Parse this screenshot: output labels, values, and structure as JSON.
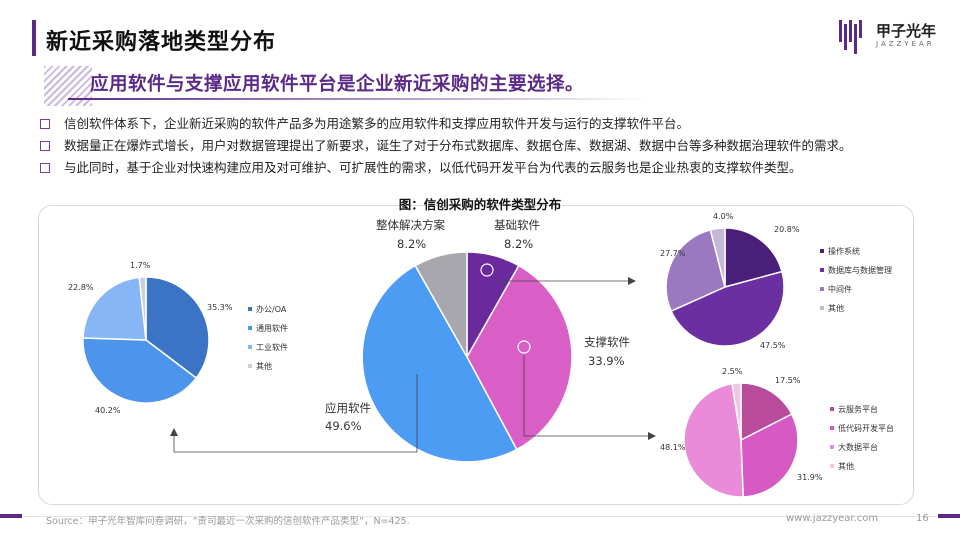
{
  "header": {
    "title": "新近采购落地类型分布",
    "logo_text": "甲子光年",
    "logo_sub": "JAZZYEAR"
  },
  "headline": "应用软件与支撑应用软件平台是企业新近采购的主要选择。",
  "bullets": [
    "信创软件体系下，企业新近采购的软件产品多为用途繁多的应用软件和支撑应用软件开发与运行的支撑软件平台。",
    "数据量正在爆炸式增长，用户对数据管理提出了新要求，诞生了对于分布式数据库、数据仓库、数据湖、数据中台等多种数据治理软件的需求。",
    "与此同时，基于企业对快速构建应用及对可维护、可扩展性的需求，以低代码开发平台为代表的云服务也是企业热衷的支撑软件类型。"
  ],
  "chart_title": "图：信创采购的软件类型分布",
  "chart_data": [
    {
      "type": "pie",
      "title": "图：信创采购的软件类型分布",
      "categories": [
        "应用软件",
        "支撑软件",
        "基础软件",
        "整体解决方案"
      ],
      "values": [
        49.6,
        33.9,
        8.2,
        8.2
      ],
      "value_labels": [
        "49.6%",
        "33.9%",
        "8.2%",
        "8.2%"
      ],
      "colors": [
        "#4d9cf3",
        "#d95fc6",
        "#6a2a9e",
        "#a7a7ad"
      ]
    },
    {
      "type": "pie",
      "categories": [
        "办公/OA",
        "通用软件",
        "工业软件",
        "其他"
      ],
      "values": [
        35.3,
        40.2,
        22.8,
        1.7
      ],
      "value_labels": [
        "35.3%",
        "40.2%",
        "22.8%",
        "1.7%"
      ],
      "colors": [
        "#3b74c4",
        "#4d94ec",
        "#86b6f5",
        "#c9cfdc"
      ],
      "legend": "right"
    },
    {
      "type": "pie",
      "categories": [
        "操作系统",
        "数据库与数据管理",
        "中间件",
        "其他"
      ],
      "values": [
        20.8,
        47.5,
        27.7,
        4.0
      ],
      "value_labels": [
        "20.8%",
        "47.5%",
        "27.7%",
        "4.0%"
      ],
      "colors": [
        "#4a1f7a",
        "#6a2fa0",
        "#9a79c0",
        "#c4b8d4"
      ],
      "legend": "right"
    },
    {
      "type": "pie",
      "categories": [
        "云服务平台",
        "低代码开发平台",
        "大数据平台",
        "其他"
      ],
      "values": [
        17.5,
        31.9,
        48.1,
        2.5
      ],
      "value_labels": [
        "17.5%",
        "31.9%",
        "48.1%",
        "2.5%"
      ],
      "colors": [
        "#b84c9b",
        "#d75ac4",
        "#e98bd8",
        "#efc6e6"
      ],
      "legend": "right"
    }
  ],
  "footer": {
    "source": "Source：甲子光年智库问卷调研，“贵司最近一次采购的信创软件产品类型”，N=425.",
    "site": "www.jazzyear.com",
    "page": "16"
  }
}
